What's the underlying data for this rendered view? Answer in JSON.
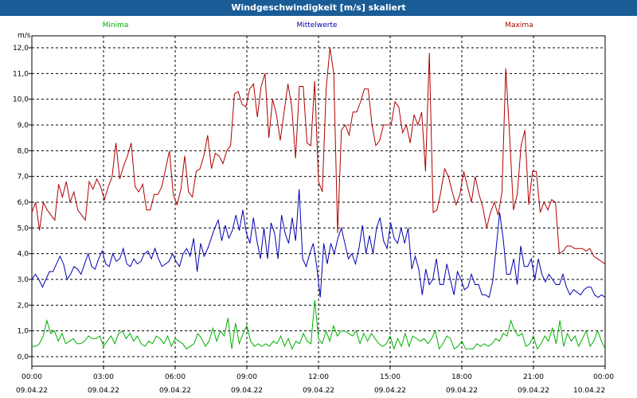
{
  "window": {
    "title": "Windgeschwindigkeit [m/s] skaliert"
  },
  "chart_data": {
    "type": "line",
    "title": "Windgeschwindigkeit [m/s] skaliert",
    "ylabel": "m/s",
    "ylim": [
      0,
      12
    ],
    "xlim": [
      0,
      24
    ],
    "grid": true,
    "legend_placement": "top",
    "y_ticks": [
      "0,0",
      "1,0",
      "2,0",
      "3,0",
      "4,0",
      "5,0",
      "6,0",
      "7,0",
      "8,0",
      "9,0",
      "10,0",
      "11,0",
      "12,0"
    ],
    "x_ticks": [
      {
        "time": "00:00",
        "date": "09.04.22"
      },
      {
        "time": "03:00",
        "date": "09.04.22"
      },
      {
        "time": "06:00",
        "date": "09.04.22"
      },
      {
        "time": "09:00",
        "date": "09.04.22"
      },
      {
        "time": "12:00",
        "date": "09.04.22"
      },
      {
        "time": "15:00",
        "date": "09.04.22"
      },
      {
        "time": "18:00",
        "date": "09.04.22"
      },
      {
        "time": "21:00",
        "date": "09.04.22"
      },
      {
        "time": "00:00",
        "date": "10.04.22"
      }
    ],
    "series": [
      {
        "name": "Minima",
        "color": "#00b000",
        "x_step_hours": 0.1667,
        "values": [
          0.4,
          0.4,
          0.5,
          0.8,
          1.4,
          0.9,
          1.0,
          0.6,
          0.9,
          0.5,
          0.6,
          0.7,
          0.5,
          0.5,
          0.6,
          0.8,
          0.7,
          0.7,
          0.8,
          0.4,
          0.6,
          0.8,
          0.5,
          0.9,
          1.0,
          0.7,
          0.9,
          0.6,
          0.8,
          0.5,
          0.4,
          0.6,
          0.5,
          0.8,
          0.7,
          0.5,
          0.8,
          0.4,
          0.7,
          0.6,
          0.5,
          0.3,
          0.4,
          0.5,
          0.9,
          0.7,
          0.4,
          0.6,
          1.1,
          0.6,
          1.0,
          0.8,
          1.5,
          0.3,
          1.3,
          0.5,
          0.9,
          1.2,
          0.6,
          0.4,
          0.5,
          0.4,
          0.5,
          0.4,
          0.6,
          0.5,
          0.8,
          0.4,
          0.7,
          0.3,
          0.6,
          0.5,
          0.9,
          0.6,
          0.5,
          2.2,
          0.7,
          0.5,
          1.0,
          0.6,
          1.2,
          0.8,
          1.0,
          1.0,
          0.9,
          0.8,
          1.0,
          0.5,
          0.9,
          0.6,
          0.9,
          0.7,
          0.5,
          0.4,
          0.5,
          0.8,
          0.3,
          0.7,
          0.4,
          0.9,
          0.4,
          0.8,
          0.7,
          0.6,
          0.7,
          0.5,
          0.7,
          1.0,
          0.3,
          0.5,
          0.8,
          0.7,
          0.3,
          0.4,
          0.6,
          0.3,
          0.3,
          0.3,
          0.5,
          0.4,
          0.5,
          0.4,
          0.5,
          0.7,
          0.6,
          0.9,
          0.8,
          1.4,
          1.0,
          0.8,
          0.9,
          0.4,
          0.5,
          0.8,
          0.3,
          0.5,
          0.8,
          0.6,
          1.1,
          0.5,
          1.4,
          0.4,
          0.9,
          0.6,
          0.8,
          0.4,
          0.7,
          1.0,
          0.4,
          0.6,
          1.0,
          0.6,
          0.3
        ]
      },
      {
        "name": "Mittelwerte",
        "color": "#0000b0",
        "x_step_hours": 0.1667,
        "values": [
          3.0,
          3.2,
          3.0,
          2.7,
          3.0,
          3.3,
          3.3,
          3.6,
          3.9,
          3.6,
          3.0,
          3.2,
          3.5,
          3.4,
          3.2,
          3.6,
          4.0,
          3.5,
          3.4,
          3.8,
          4.1,
          3.6,
          3.5,
          4.0,
          3.7,
          3.8,
          4.2,
          3.6,
          3.5,
          3.8,
          3.6,
          3.7,
          4.0,
          4.1,
          3.8,
          4.2,
          3.8,
          3.5,
          3.6,
          3.7,
          4.0,
          3.7,
          3.5,
          4.0,
          4.2,
          3.9,
          4.6,
          3.3,
          4.4,
          3.9,
          4.2,
          4.6,
          5.0,
          5.3,
          4.5,
          5.1,
          4.6,
          4.9,
          5.5,
          4.9,
          5.7,
          4.8,
          4.4,
          5.4,
          4.5,
          3.8,
          5.0,
          3.8,
          5.2,
          4.8,
          3.8,
          5.5,
          4.8,
          4.4,
          5.4,
          4.5,
          6.5,
          3.8,
          3.5,
          4.0,
          4.4,
          3.5,
          2.3,
          4.4,
          3.6,
          4.4,
          4.0,
          4.6,
          5.0,
          4.4,
          3.8,
          4.0,
          3.6,
          4.2,
          5.1,
          4.0,
          4.7,
          4.0,
          5.0,
          5.4,
          4.5,
          4.2,
          5.2,
          4.6,
          4.4,
          5.0,
          4.4,
          5.0,
          3.4,
          3.9,
          3.4,
          2.4,
          3.4,
          2.8,
          3.0,
          3.8,
          2.8,
          2.8,
          3.6,
          3.0,
          2.4,
          3.3,
          3.0,
          2.6,
          2.7,
          3.2,
          2.8,
          2.8,
          2.4,
          2.4,
          2.3,
          2.9,
          4.2,
          5.6,
          4.6,
          3.2,
          3.2,
          3.8,
          2.8,
          4.3,
          3.5,
          3.5,
          3.8,
          3.0,
          3.8,
          3.2,
          2.9,
          3.2,
          3.0,
          2.8,
          2.8,
          3.2,
          2.7,
          2.4,
          2.6,
          2.5,
          2.4,
          2.6,
          2.7,
          2.7,
          2.4,
          2.3,
          2.4,
          2.3
        ]
      },
      {
        "name": "Maxima",
        "color": "#b00000",
        "x_step_hours": 0.1667,
        "values": [
          5.6,
          6.0,
          4.9,
          6.0,
          5.7,
          5.5,
          5.3,
          6.7,
          6.2,
          6.8,
          6.0,
          6.4,
          5.7,
          5.5,
          5.3,
          6.8,
          6.5,
          6.9,
          6.6,
          6.1,
          6.6,
          7.0,
          8.3,
          6.9,
          7.4,
          7.8,
          8.3,
          6.6,
          6.4,
          6.7,
          5.7,
          5.7,
          6.3,
          6.3,
          6.6,
          7.3,
          8.0,
          6.3,
          5.9,
          6.5,
          7.8,
          6.4,
          6.2,
          7.2,
          7.3,
          7.8,
          8.6,
          7.3,
          7.9,
          7.8,
          7.5,
          8.0,
          8.2,
          10.2,
          10.3,
          9.8,
          9.7,
          10.4,
          10.6,
          9.3,
          10.5,
          11.0,
          8.5,
          10.0,
          9.4,
          8.4,
          9.5,
          10.6,
          9.7,
          7.7,
          10.5,
          10.5,
          8.3,
          8.2,
          10.7,
          6.8,
          6.4,
          10.4,
          12.0,
          11.0,
          4.8,
          8.8,
          9.0,
          8.6,
          9.5,
          9.5,
          9.9,
          10.4,
          10.4,
          9.0,
          8.2,
          8.4,
          9.0,
          9.0,
          9.0,
          9.9,
          9.7,
          8.7,
          9.0,
          8.3,
          9.4,
          9.0,
          9.5,
          7.2,
          11.8,
          5.6,
          5.7,
          6.4,
          7.3,
          7.0,
          6.4,
          5.9,
          6.3,
          7.2,
          6.6,
          6.0,
          7.0,
          6.3,
          5.8,
          5.0,
          5.6,
          6.0,
          5.5,
          6.4,
          11.2,
          8.6,
          5.7,
          6.3,
          8.2,
          8.8,
          5.9,
          7.2,
          7.2,
          5.6,
          6.0,
          5.7,
          6.1,
          6.0,
          4.0,
          4.1,
          4.3,
          4.3,
          4.2,
          4.2,
          4.2,
          4.1,
          4.2,
          3.9,
          3.8,
          3.7,
          3.6
        ]
      }
    ]
  }
}
